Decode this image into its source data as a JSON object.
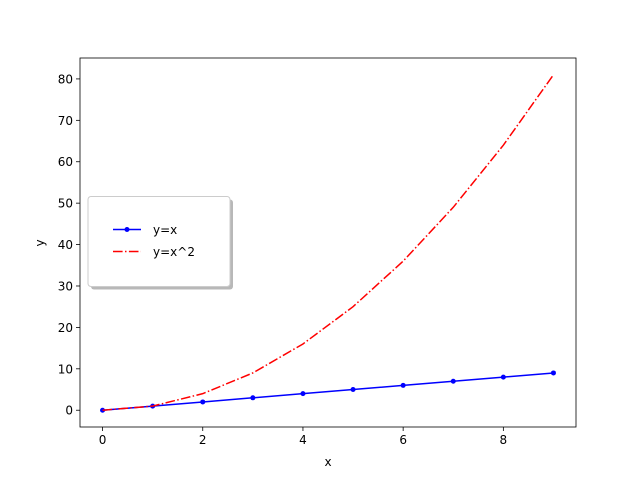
{
  "chart_data": {
    "type": "line",
    "x": [
      0,
      1,
      2,
      3,
      4,
      5,
      6,
      7,
      8,
      9
    ],
    "series": [
      {
        "name": "y=x",
        "color": "#0000ff",
        "linestyle": "-",
        "marker": "o",
        "values": [
          0,
          1,
          2,
          3,
          4,
          5,
          6,
          7,
          8,
          9
        ]
      },
      {
        "name": "y=x^2",
        "color": "#ff0000",
        "linestyle": "-.",
        "marker": null,
        "values": [
          0,
          1,
          4,
          9,
          16,
          25,
          36,
          49,
          64,
          81
        ]
      }
    ],
    "xlabel": "x",
    "ylabel": "y",
    "xlim": [
      -0.45,
      9.45
    ],
    "ylim": [
      -4.05,
      85.05
    ],
    "xticks": [
      0,
      2,
      4,
      6,
      8
    ],
    "yticks": [
      0,
      10,
      20,
      30,
      40,
      50,
      60,
      70,
      80
    ],
    "grid": false,
    "legend_loc": "center left",
    "legend_shadow": true
  }
}
